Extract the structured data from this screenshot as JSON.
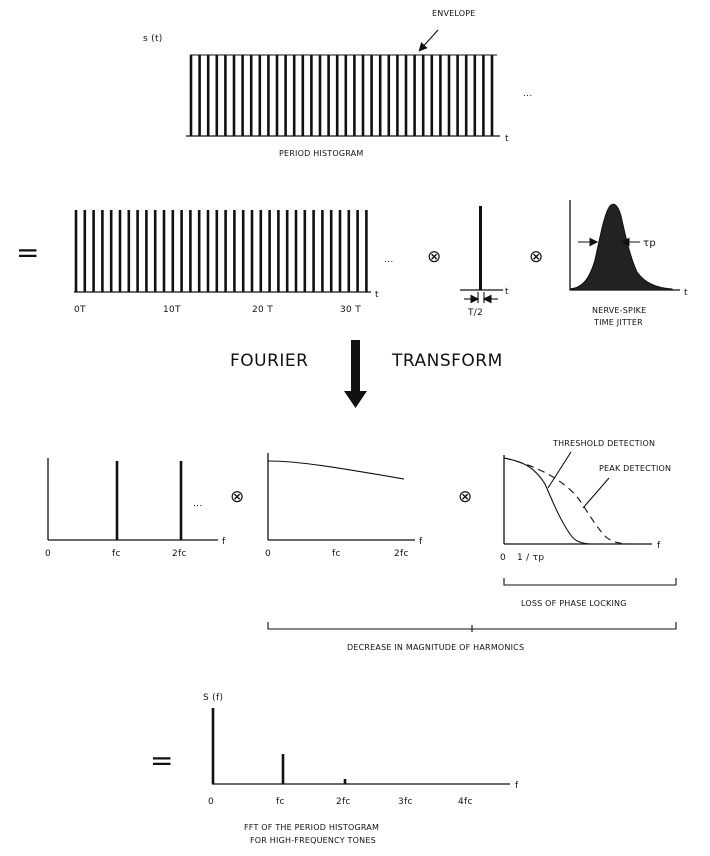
{
  "panel1": {
    "ylabel": "s (t)",
    "envelope_label": "ENVELOPE",
    "t_label": "t",
    "ellipsis": "...",
    "caption": "PERIOD HISTOGRAM"
  },
  "panel2": {
    "equals": "=",
    "ticks": [
      "0T",
      "10T",
      "20 T",
      "30 T"
    ],
    "t_label": "t",
    "ellipsis": "...",
    "conv1": "⊗",
    "conv2": "⊗",
    "pulse_width": "T/2",
    "pulse_t": "t",
    "tau": "τp",
    "jitter_t": "t",
    "jitter_caption_line1": "NERVE-SPIKE",
    "jitter_caption_line2": "TIME JITTER"
  },
  "transform": {
    "left": "FOURIER",
    "right": "TRANSFORM"
  },
  "panel3": {
    "a_ticks": [
      "0",
      "fc",
      "2fc"
    ],
    "a_f": "f",
    "ellipsis": "...",
    "conv1": "⊗",
    "b_ticks": [
      "0",
      "fc",
      "2fc"
    ],
    "b_f": "f",
    "conv2": "⊗",
    "threshold_label": "THRESHOLD DETECTION",
    "peak_label": "PEAK DETECTION",
    "c_ticks": [
      "0",
      "1 / τp"
    ],
    "c_f": "f",
    "loss_label": "LOSS OF PHASE LOCKING",
    "decrease_label": "DECREASE IN MAGNITUDE OF HARMONICS"
  },
  "panel4": {
    "equals": "=",
    "ylabel": "S (f)",
    "ticks": [
      "0",
      "fc",
      "2fc",
      "3fc",
      "4fc"
    ],
    "f_label": "f",
    "caption_line1": "FFT OF THE PERIOD HISTOGRAM",
    "caption_line2": "FOR HIGH-FREQUENCY TONES"
  }
}
